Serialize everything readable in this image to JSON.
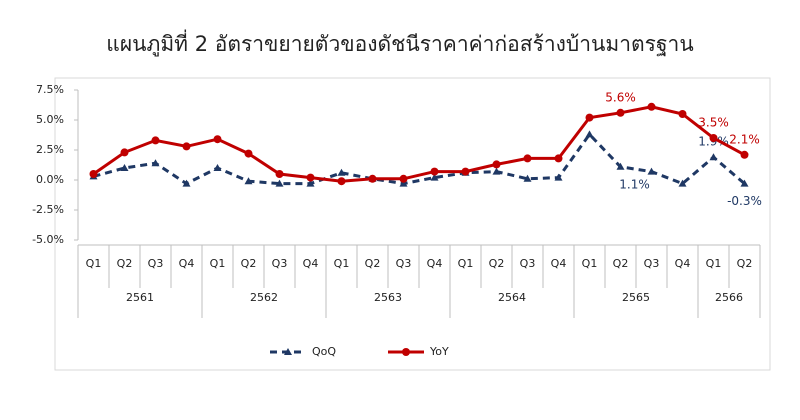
{
  "chart_data": {
    "type": "line",
    "title": "แผนภูมิที่ 2 อัตราขยายตัวของดัชนีราคาค่าก่อสร้างบ้านมาตรฐาน",
    "categories": [
      "Q1",
      "Q2",
      "Q3",
      "Q4",
      "Q1",
      "Q2",
      "Q3",
      "Q4",
      "Q1",
      "Q2",
      "Q3",
      "Q4",
      "Q1",
      "Q2",
      "Q3",
      "Q4",
      "Q1",
      "Q2",
      "Q3",
      "Q4",
      "Q1",
      "Q2"
    ],
    "groups": [
      {
        "name": "2561",
        "count": 4
      },
      {
        "name": "2562",
        "count": 4
      },
      {
        "name": "2563",
        "count": 4
      },
      {
        "name": "2564",
        "count": 4
      },
      {
        "name": "2565",
        "count": 4
      },
      {
        "name": "2566",
        "count": 2
      }
    ],
    "series": [
      {
        "name": "QoQ",
        "color": "#1f3864",
        "dashed": true,
        "marker": "triangle",
        "values": [
          0.3,
          1.0,
          1.4,
          -0.3,
          1.0,
          -0.1,
          -0.3,
          -0.3,
          0.6,
          0.1,
          -0.3,
          0.2,
          0.6,
          0.7,
          0.1,
          0.2,
          3.8,
          1.1,
          0.7,
          -0.3,
          1.9,
          -0.3
        ],
        "value_labels": [
          null,
          null,
          null,
          null,
          null,
          null,
          null,
          null,
          null,
          null,
          null,
          null,
          null,
          null,
          null,
          null,
          null,
          "1.1%",
          null,
          null,
          "1.9%",
          "-0.3%"
        ]
      },
      {
        "name": "YoY",
        "color": "#c00000",
        "dashed": false,
        "marker": "circle",
        "values": [
          0.5,
          2.3,
          3.3,
          2.8,
          3.4,
          2.2,
          0.5,
          0.2,
          -0.1,
          0.1,
          0.1,
          0.7,
          0.7,
          1.3,
          1.8,
          1.8,
          5.2,
          5.6,
          6.1,
          5.5,
          3.5,
          2.1
        ],
        "value_labels": [
          null,
          null,
          null,
          null,
          null,
          null,
          null,
          null,
          null,
          null,
          null,
          null,
          null,
          null,
          null,
          null,
          null,
          "5.6%",
          null,
          null,
          "3.5%",
          "2.1%"
        ]
      }
    ],
    "ylim": [
      -5,
      7.5
    ],
    "yticks": [
      {
        "value": -5,
        "label": "-5.0%"
      },
      {
        "value": -2.5,
        "label": "-2.5%"
      },
      {
        "value": 0,
        "label": "0.0%"
      },
      {
        "value": 2.5,
        "label": "2.5%"
      },
      {
        "value": 5,
        "label": "5.0%"
      },
      {
        "value": 7.5,
        "label": "7.5%"
      }
    ]
  }
}
